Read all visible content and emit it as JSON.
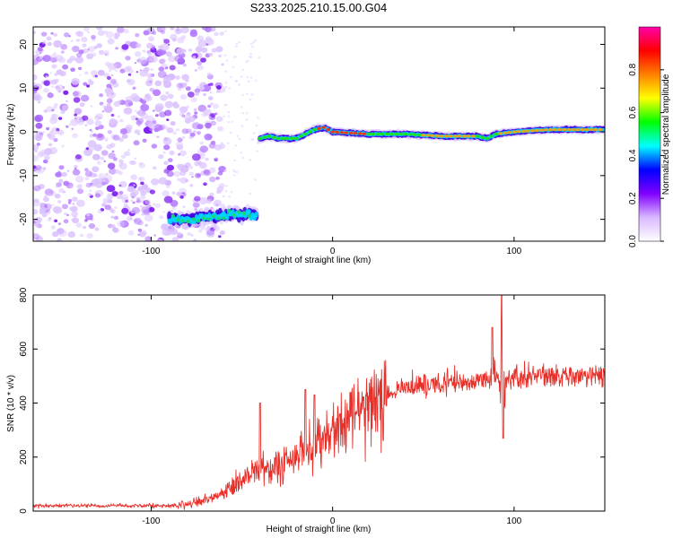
{
  "page": {
    "title": "S233.2025.210.15.00.G04"
  },
  "chart_data": [
    {
      "type": "heatmap",
      "title": "",
      "xlabel": "Height of straight line (km)",
      "ylabel": "Frequency (Hz)",
      "xlim": [
        -165,
        150
      ],
      "ylim": [
        -25,
        24
      ],
      "xticks": [
        -100,
        0,
        100
      ],
      "yticks": [
        -20,
        -10,
        0,
        10,
        20
      ],
      "colorbar": {
        "label": "Normalized spectral amplitude",
        "range": [
          0.0,
          1.0
        ],
        "ticks": [
          "0.0",
          "0.2",
          "0.4",
          "0.6",
          "0.8"
        ],
        "colors": [
          "#ffffff",
          "#d9b8ff",
          "#8000ff",
          "#0000ff",
          "#00ffff",
          "#00ff00",
          "#ffff00",
          "#ff8000",
          "#ff0000",
          "#ff00aa"
        ]
      },
      "ridge": {
        "x": [
          -90,
          -80,
          -70,
          -60,
          -50,
          -42,
          -40,
          -35,
          -30,
          -20,
          -10,
          -5,
          0,
          20,
          40,
          60,
          80,
          85,
          90,
          100,
          120,
          150
        ],
        "y": [
          -20,
          -20,
          -19.5,
          -19,
          -19,
          -19,
          -1.5,
          -1,
          -1.5,
          -1.5,
          0.5,
          1,
          0,
          -0.5,
          -0.5,
          -1,
          -1,
          -1.5,
          -0.5,
          0,
          0.5,
          0.5
        ]
      }
    },
    {
      "type": "line",
      "title": "",
      "xlabel": "Height of straight line (km)",
      "ylabel": "SNR (10 * v/v)",
      "xlim": [
        -165,
        150
      ],
      "ylim": [
        0,
        800
      ],
      "xticks": [
        -100,
        0,
        100
      ],
      "yticks": [
        0,
        200,
        400,
        600,
        800
      ],
      "color": "#e8302a",
      "trend": {
        "x": [
          -165,
          -120,
          -85,
          -70,
          -60,
          -50,
          -40,
          -30,
          -20,
          -10,
          0,
          10,
          20,
          30,
          40,
          60,
          80,
          100,
          120,
          150
        ],
        "y": [
          20,
          20,
          20,
          40,
          70,
          110,
          160,
          170,
          200,
          240,
          300,
          360,
          410,
          440,
          460,
          470,
          480,
          490,
          500,
          510
        ]
      },
      "spikes": [
        {
          "x": -40,
          "y": 400
        },
        {
          "x": -15,
          "y": 450
        },
        {
          "x": -10,
          "y": 430
        },
        {
          "x": 88,
          "y": 680
        },
        {
          "x": 93,
          "y": 800
        },
        {
          "x": 94,
          "y": 270
        }
      ]
    }
  ]
}
